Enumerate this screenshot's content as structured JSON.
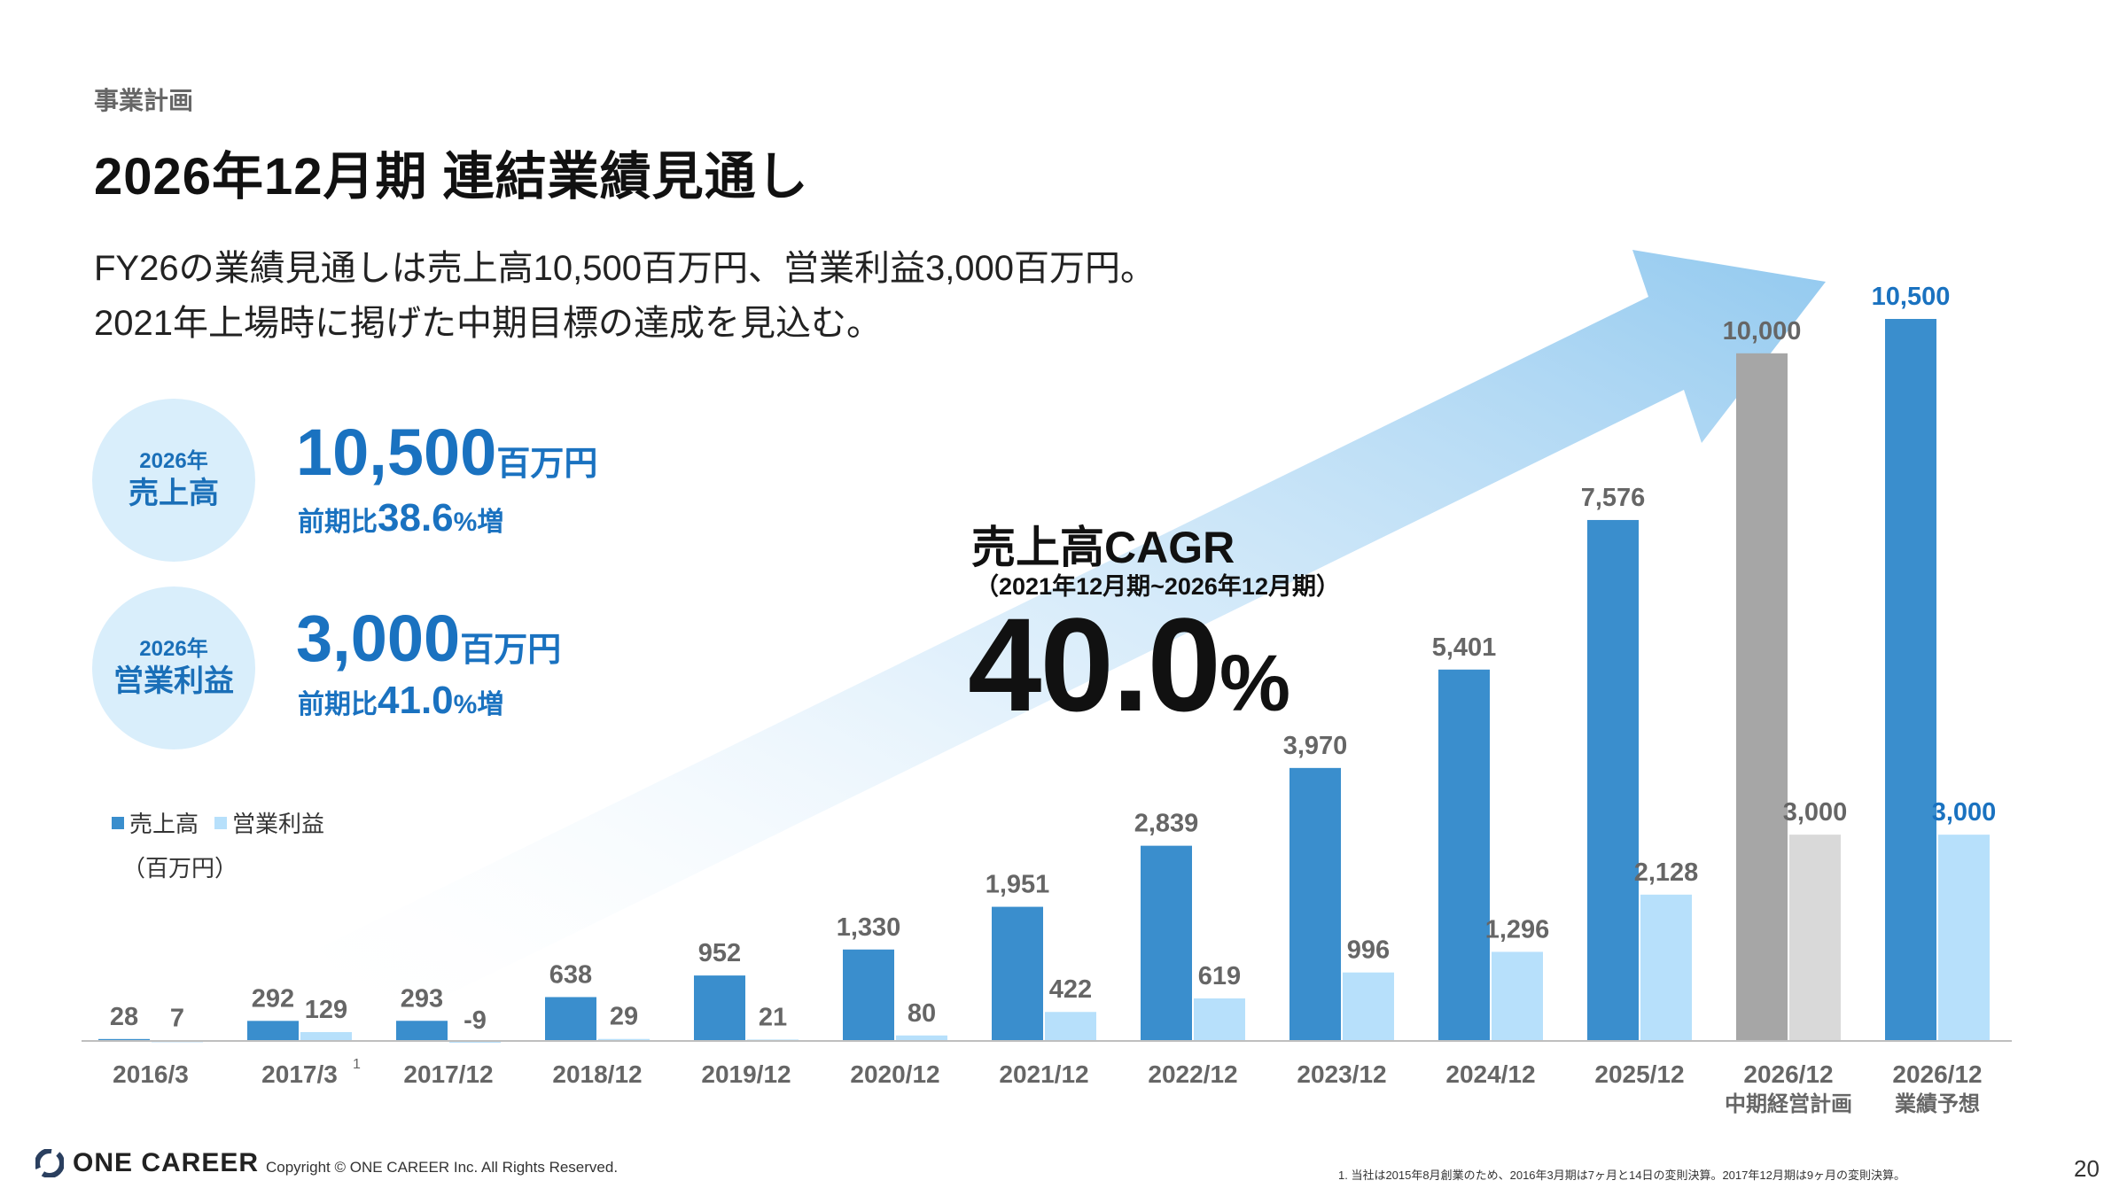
{
  "header": {
    "section": "事業計画",
    "title": "2026年12月期 連結業績見通し"
  },
  "lead": {
    "line1": "FY26の業績見通しは売上高10,500百万円、営業利益3,000百万円。",
    "line2": "2021年上場時に掲げた中期目標の達成を見込む。"
  },
  "kpis": {
    "revenue": {
      "year": "2026年",
      "name": "売上高",
      "value": "10,500",
      "unit": "百万円",
      "yoy_prefix": "前期比",
      "yoy_value": "38.6",
      "yoy_suffix": "%増"
    },
    "operating_income": {
      "year": "2026年",
      "name": "営業利益",
      "value": "3,000",
      "unit": "百万円",
      "yoy_prefix": "前期比",
      "yoy_value": "41.0",
      "yoy_suffix": "%増"
    }
  },
  "cagr": {
    "title": "売上高CAGR",
    "period": "（2021年12月期~2026年12月期）",
    "value": "40.0",
    "unit": "%"
  },
  "colors": {
    "revenue": "#3a8ecd",
    "operating_income": "#b7e0fb",
    "plan_revenue": "#a6a6a6",
    "plan_income": "#d9d9d9",
    "forecast_label": "#1a72c0",
    "label": "#666666",
    "arrow": "#92c9ef"
  },
  "legend": {
    "revenue": "売上高",
    "operating_income": "営業利益",
    "unit": "（百万円）"
  },
  "chart_data": {
    "type": "bar",
    "title": "",
    "xlabel": "",
    "ylabel": "百万円",
    "ylim": [
      -9,
      10500
    ],
    "categories": [
      [
        "2016/3"
      ],
      [
        "2017/3"
      ],
      [
        "2017/12"
      ],
      [
        "2018/12"
      ],
      [
        "2019/12"
      ],
      [
        "2020/12"
      ],
      [
        "2021/12"
      ],
      [
        "2022/12"
      ],
      [
        "2023/12"
      ],
      [
        "2024/12"
      ],
      [
        "2025/12"
      ],
      [
        "2026/12",
        "中期経営計画"
      ],
      [
        "2026/12",
        "業績予想"
      ]
    ],
    "category_footnote": {
      "index": 1,
      "mark": "1"
    },
    "series": [
      {
        "name": "売上高",
        "values": [
          28,
          292,
          293,
          638,
          952,
          1330,
          1951,
          2839,
          3970,
          5401,
          7576,
          10000,
          10500
        ],
        "labels": [
          "28",
          "292",
          "293",
          "638",
          "952",
          "1,330",
          "1,951",
          "2,839",
          "3,970",
          "5,401",
          "7,576",
          "10,000",
          "10,500"
        ]
      },
      {
        "name": "営業利益",
        "values": [
          7,
          129,
          -9,
          29,
          21,
          80,
          422,
          619,
          996,
          1296,
          2128,
          3000,
          3000
        ],
        "labels": [
          "7",
          "129",
          "-9",
          "29",
          "21",
          "80",
          "422",
          "619",
          "996",
          "1,296",
          "2,128",
          "3,000",
          "3,000"
        ]
      }
    ]
  },
  "footer": {
    "logo": "ONE CAREER",
    "copyright": "Copyright © ONE CAREER Inc. All Rights Reserved.",
    "footnote": "1. 当社は2015年8月創業のため、2016年3月期は7ヶ月と14日の変則決算。2017年12月期は9ヶ月の変則決算。",
    "page": "20"
  }
}
